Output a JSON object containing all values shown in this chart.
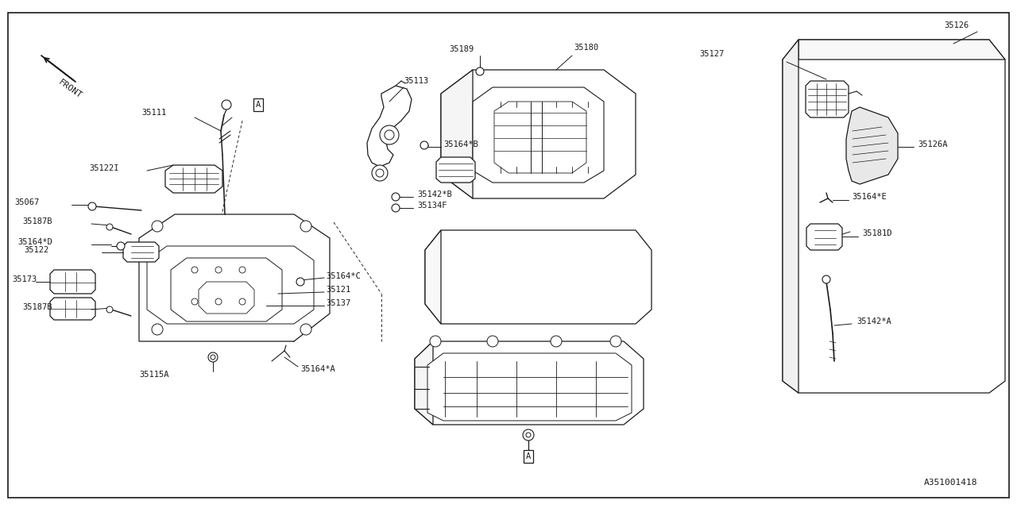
{
  "bg_color": "#ffffff",
  "line_color": "#1a1a1a",
  "fig_width": 12.8,
  "fig_height": 6.4,
  "diagram_id": "A351001418",
  "border": [
    0.008,
    0.025,
    0.984,
    0.955
  ]
}
